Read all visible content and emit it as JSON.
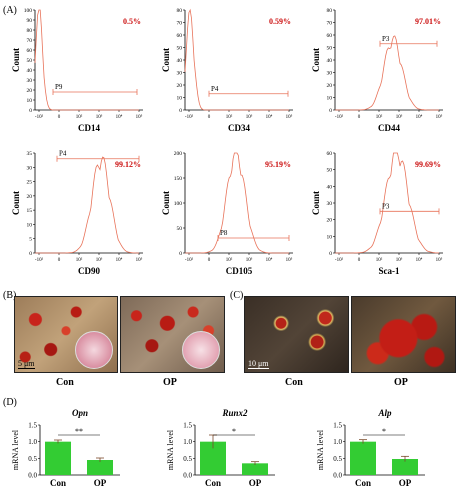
{
  "panel_labels": {
    "a": "(A)",
    "b": "(B)",
    "c": "(C)",
    "d": "(D)"
  },
  "flow": {
    "ylabel": "Count",
    "plots": [
      {
        "marker": "CD14",
        "pct": "0.5%",
        "gate": "P9",
        "ymax": 100,
        "yticks": [
          0,
          10,
          20,
          30,
          40,
          50,
          60,
          70,
          80,
          90,
          100
        ],
        "peak_x": 0.0,
        "peak_y": 97,
        "width": 0.18,
        "gate_from": 0.7,
        "gate_to": 4.9,
        "gate_y": 18
      },
      {
        "marker": "CD34",
        "pct": "0.59%",
        "gate": "P4",
        "ymax": 80,
        "yticks": [
          0,
          10,
          20,
          30,
          40,
          50,
          60,
          70,
          80
        ],
        "peak_x": 0.05,
        "peak_y": 74,
        "width": 0.2,
        "gate_from": 1.0,
        "gate_to": 4.95,
        "gate_y": 13
      },
      {
        "marker": "CD44",
        "pct": "97.01%",
        "gate": "P3",
        "ymax": 80,
        "yticks": [
          0,
          10,
          20,
          30,
          40,
          50,
          60,
          70,
          80
        ],
        "peak_x": 2.7,
        "peak_y": 55,
        "width": 0.45,
        "gate_from": 2.05,
        "gate_to": 4.9,
        "gate_y": 53
      },
      {
        "marker": "CD90",
        "pct": "99.12%",
        "gate": "P4",
        "ymax": 35,
        "yticks": [
          0,
          5,
          10,
          15,
          20,
          25,
          30,
          35
        ],
        "peak_x": 3.1,
        "peak_y": 32,
        "width": 0.45,
        "gate_from": 0.9,
        "gate_to": 5.0,
        "gate_y": 33
      },
      {
        "marker": "CD105",
        "pct": "95.19%",
        "gate": "P8",
        "ymax": 200,
        "yticks": [
          0,
          50,
          100,
          150,
          200
        ],
        "peak_x": 2.35,
        "peak_y": 195,
        "width": 0.45,
        "gate_from": 1.45,
        "gate_to": 5.0,
        "gate_y": 30
      },
      {
        "marker": "Sca-1",
        "pct": "99.69%",
        "gate": "P3",
        "ymax": 60,
        "yticks": [
          0,
          10,
          20,
          30,
          40,
          50,
          60
        ],
        "peak_x": 2.9,
        "peak_y": 59,
        "width": 0.55,
        "gate_from": 2.05,
        "gate_to": 5.0,
        "gate_y": 25
      }
    ],
    "xticks": [
      "-10²",
      "0",
      "10²",
      "10³",
      "10⁴",
      "10⁵"
    ]
  },
  "stain_b": {
    "scale": "5 μm",
    "groups": [
      "Con",
      "OP"
    ]
  },
  "stain_c": {
    "scale": "10 μm",
    "groups": [
      "Con",
      "OP"
    ]
  },
  "chart_data": [
    {
      "type": "bar",
      "title": "Opn",
      "ylabel": "mRNA level",
      "categories": [
        "Con",
        "OP"
      ],
      "values": [
        1.0,
        0.45
      ],
      "errors": [
        0.05,
        0.06
      ],
      "ylim": [
        0,
        1.5
      ],
      "yticks": [
        "0.0",
        "0.5",
        "1.0",
        "1.5"
      ],
      "significance": "**"
    },
    {
      "type": "bar",
      "title": "Runx2",
      "ylabel": "mRNA level",
      "categories": [
        "Con",
        "OP"
      ],
      "values": [
        1.0,
        0.35
      ],
      "errors": [
        0.2,
        0.05
      ],
      "ylim": [
        0,
        1.5
      ],
      "yticks": [
        "0.0",
        "0.5",
        "1.0",
        "1.5"
      ],
      "significance": "*"
    },
    {
      "type": "bar",
      "title": "Alp",
      "ylabel": "mRNA level",
      "categories": [
        "Con",
        "OP"
      ],
      "values": [
        1.0,
        0.48
      ],
      "errors": [
        0.06,
        0.08
      ],
      "ylim": [
        0,
        1.5
      ],
      "yticks": [
        "0.0",
        "0.5",
        "1.0",
        "1.5"
      ],
      "significance": "*"
    }
  ],
  "colors": {
    "histogram": "#e8735a",
    "percent": "#cc1111",
    "bar": "#33cc33",
    "error": "#7a4a2a"
  }
}
